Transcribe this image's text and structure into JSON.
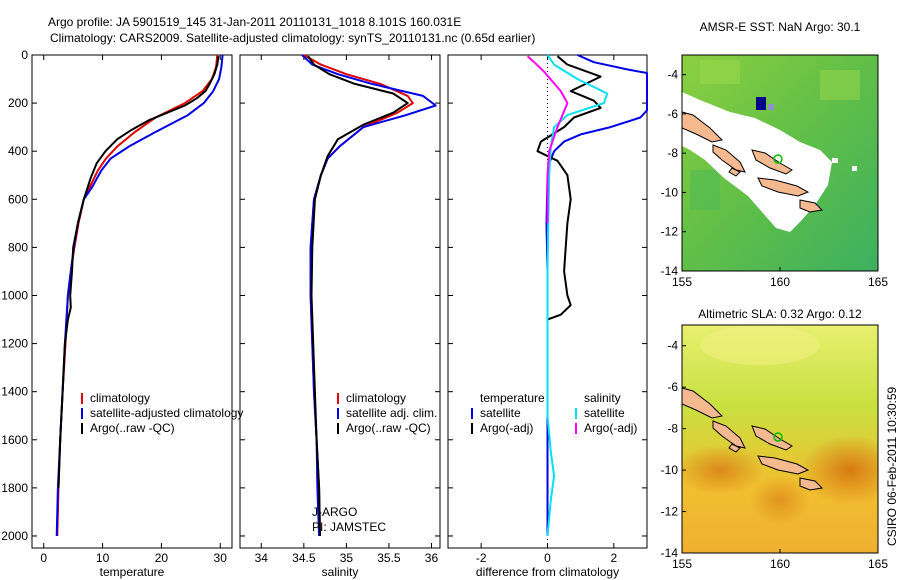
{
  "header": {
    "line1": "Argo profile: JA 5901519_145 31-Jan-2011 20110131_1018 8.101S 160.031E",
    "line2": "Climatology: CARS2009. Satellite-adjusted climatology: synTS_20110131.nc (0.65d earlier)"
  },
  "side_label": "CSIRO 06-Feb-2011 10:30:59",
  "colors": {
    "climatology": "#e00000",
    "satellite": "#0000e6",
    "argo": "#000000",
    "satellite_salinity_diff": "#00e0f0",
    "argo_salinity_diff": "#ff00ff",
    "map_land": "#f4b98f",
    "map_masked": "#ffffff",
    "map_warm": "#f0a020",
    "map_hot": "#d87a12"
  },
  "chart_data": [
    {
      "type": "line",
      "panel": "temperature",
      "xlabel": "temperature",
      "ylabel": "",
      "xlim": [
        -2,
        32
      ],
      "ylim": [
        0,
        2050
      ],
      "y_reversed": true,
      "xticks": [
        0,
        10,
        20,
        30
      ],
      "yticks": [
        0,
        200,
        400,
        600,
        800,
        1000,
        1200,
        1400,
        1600,
        1800,
        2000
      ],
      "legend": [
        "climatology",
        "satellite-adjusted climatology",
        "Argo(..raw -QC)"
      ],
      "series": [
        {
          "name": "climatology",
          "color_key": "climatology",
          "points": [
            [
              29.5,
              0
            ],
            [
              29.3,
              50
            ],
            [
              28.6,
              100
            ],
            [
              27.0,
              150
            ],
            [
              24.0,
              200
            ],
            [
              19.0,
              260
            ],
            [
              15.5,
              320
            ],
            [
              12.5,
              380
            ],
            [
              10.6,
              430
            ],
            [
              9.2,
              480
            ],
            [
              7.8,
              550
            ],
            [
              6.8,
              600
            ],
            [
              5.9,
              700
            ],
            [
              5.2,
              800
            ],
            [
              4.6,
              900
            ],
            [
              4.1,
              1000
            ],
            [
              3.7,
              1200
            ],
            [
              3.2,
              1400
            ],
            [
              2.8,
              1600
            ],
            [
              2.5,
              1800
            ],
            [
              2.3,
              2000
            ]
          ]
        },
        {
          "name": "satellite-adjusted climatology",
          "color_key": "satellite",
          "points": [
            [
              30.4,
              0
            ],
            [
              30.2,
              50
            ],
            [
              29.8,
              100
            ],
            [
              28.8,
              150
            ],
            [
              27.2,
              200
            ],
            [
              24.5,
              250
            ],
            [
              19.0,
              320
            ],
            [
              14.5,
              380
            ],
            [
              11.4,
              430
            ],
            [
              9.8,
              480
            ],
            [
              8.2,
              550
            ],
            [
              6.8,
              600
            ],
            [
              5.8,
              700
            ],
            [
              5.1,
              800
            ],
            [
              4.6,
              900
            ],
            [
              4.1,
              1000
            ],
            [
              3.6,
              1200
            ],
            [
              3.2,
              1400
            ],
            [
              2.8,
              1600
            ],
            [
              2.4,
              1800
            ],
            [
              2.2,
              2000
            ]
          ]
        },
        {
          "name": "Argo(..raw -QC)",
          "color_key": "argo",
          "points": [
            [
              29.7,
              5
            ],
            [
              29.5,
              40
            ],
            [
              29.0,
              80
            ],
            [
              28.2,
              120
            ],
            [
              27.5,
              150
            ],
            [
              26.0,
              180
            ],
            [
              24.0,
              210
            ],
            [
              21.0,
              240
            ],
            [
              18.0,
              270
            ],
            [
              15.0,
              310
            ],
            [
              12.5,
              350
            ],
            [
              10.5,
              400
            ],
            [
              9.0,
              450
            ],
            [
              8.0,
              510
            ],
            [
              6.8,
              600
            ],
            [
              5.8,
              700
            ],
            [
              5.0,
              800
            ],
            [
              4.8,
              900
            ],
            [
              4.5,
              1000
            ],
            [
              4.6,
              1050
            ],
            [
              4.1,
              1100
            ],
            [
              3.6,
              1200
            ],
            [
              3.2,
              1400
            ],
            [
              2.8,
              1600
            ],
            [
              2.5,
              1800
            ]
          ]
        }
      ]
    },
    {
      "type": "line",
      "panel": "salinity",
      "xlabel": "salinity",
      "ylabel": "",
      "xlim": [
        33.75,
        36.1
      ],
      "ylim": [
        0,
        2050
      ],
      "y_reversed": true,
      "xticks": [
        34,
        34.5,
        35,
        35.5,
        36
      ],
      "xtick_labels": [
        "34",
        "34.5",
        "35",
        "35.5",
        "36"
      ],
      "legend": [
        "climatology",
        "satellite adj. clim.",
        "Argo(..raw -QC)"
      ],
      "annotation": [
        "J-ARGO",
        "PI: JAMSTEC"
      ],
      "series": [
        {
          "name": "climatology",
          "color_key": "climatology",
          "points": [
            [
              34.5,
              0
            ],
            [
              34.7,
              40
            ],
            [
              35.0,
              80
            ],
            [
              35.4,
              120
            ],
            [
              35.72,
              170
            ],
            [
              35.78,
              200
            ],
            [
              35.6,
              240
            ],
            [
              35.2,
              300
            ],
            [
              34.92,
              380
            ],
            [
              34.78,
              430
            ],
            [
              34.7,
              500
            ],
            [
              34.62,
              600
            ],
            [
              34.58,
              800
            ],
            [
              34.58,
              1000
            ],
            [
              34.6,
              1200
            ],
            [
              34.62,
              1400
            ],
            [
              34.65,
              1600
            ],
            [
              34.68,
              1800
            ],
            [
              34.69,
              2000
            ]
          ]
        },
        {
          "name": "satellite adj. clim.",
          "color_key": "satellite",
          "points": [
            [
              34.48,
              0
            ],
            [
              34.6,
              40
            ],
            [
              34.9,
              80
            ],
            [
              35.3,
              120
            ],
            [
              35.9,
              170
            ],
            [
              36.05,
              210
            ],
            [
              35.7,
              250
            ],
            [
              35.2,
              300
            ],
            [
              34.92,
              380
            ],
            [
              34.78,
              430
            ],
            [
              34.7,
              500
            ],
            [
              34.62,
              600
            ],
            [
              34.58,
              800
            ],
            [
              34.58,
              1000
            ],
            [
              34.6,
              1200
            ],
            [
              34.62,
              1400
            ],
            [
              34.65,
              1600
            ],
            [
              34.66,
              1800
            ],
            [
              34.68,
              2000
            ]
          ]
        },
        {
          "name": "Argo(..raw -QC)",
          "color_key": "argo",
          "points": [
            [
              34.55,
              5
            ],
            [
              34.62,
              40
            ],
            [
              34.8,
              80
            ],
            [
              35.1,
              120
            ],
            [
              35.55,
              160
            ],
            [
              35.72,
              200
            ],
            [
              35.55,
              240
            ],
            [
              35.2,
              290
            ],
            [
              34.9,
              350
            ],
            [
              34.78,
              420
            ],
            [
              34.7,
              500
            ],
            [
              34.63,
              600
            ],
            [
              34.6,
              800
            ],
            [
              34.59,
              1000
            ],
            [
              34.61,
              1200
            ],
            [
              34.63,
              1400
            ],
            [
              34.65,
              1600
            ],
            [
              34.68,
              1800
            ],
            [
              34.69,
              2000
            ]
          ]
        }
      ]
    },
    {
      "type": "line",
      "panel": "difference",
      "xlabel": "difference from climatology",
      "ylabel": "",
      "xlim": [
        -3,
        3
      ],
      "ylim": [
        0,
        2050
      ],
      "y_reversed": true,
      "xticks": [
        -2,
        0,
        2
      ],
      "legend_headers": [
        "temperature",
        "salinity"
      ],
      "legend": [
        "satellite",
        "Argo(-adj)",
        "satellite",
        "Argo(-adj)"
      ],
      "series": [
        {
          "name": "satellite",
          "variable": "temperature",
          "color_key": "satellite",
          "points": [
            [
              0.9,
              0
            ],
            [
              1.4,
              30
            ],
            [
              2.4,
              60
            ],
            [
              3.0,
              75
            ],
            [
              3.0,
              230
            ],
            [
              2.8,
              260
            ],
            [
              1.9,
              300
            ],
            [
              1.0,
              330
            ],
            [
              0.5,
              360
            ],
            [
              0.2,
              400
            ],
            [
              0.05,
              450
            ],
            [
              0.0,
              500
            ],
            [
              -0.03,
              700
            ],
            [
              0.0,
              900
            ],
            [
              0.0,
              1000
            ],
            [
              0.0,
              1200
            ],
            [
              0.0,
              1400
            ],
            [
              0.0,
              1600
            ],
            [
              0.0,
              1800
            ],
            [
              0.0,
              2000
            ]
          ]
        },
        {
          "name": "Argo(-adj)",
          "variable": "temperature",
          "color_key": "argo",
          "points": [
            [
              0.3,
              5
            ],
            [
              0.6,
              40
            ],
            [
              1.6,
              90
            ],
            [
              0.7,
              150
            ],
            [
              1.4,
              190
            ],
            [
              1.6,
              220
            ],
            [
              0.8,
              260
            ],
            [
              0.5,
              300
            ],
            [
              -0.2,
              360
            ],
            [
              -0.3,
              400
            ],
            [
              0.3,
              440
            ],
            [
              0.6,
              500
            ],
            [
              0.7,
              600
            ],
            [
              0.6,
              700
            ],
            [
              0.55,
              800
            ],
            [
              0.5,
              900
            ],
            [
              0.6,
              1000
            ],
            [
              0.7,
              1040
            ],
            [
              0.4,
              1080
            ],
            [
              0.0,
              1100
            ]
          ]
        },
        {
          "name": "satellite",
          "variable": "salinity",
          "color_key": "satellite_salinity_diff",
          "points": [
            [
              0.0,
              0
            ],
            [
              0.2,
              40
            ],
            [
              0.9,
              100
            ],
            [
              1.8,
              160
            ],
            [
              1.7,
              200
            ],
            [
              0.6,
              250
            ],
            [
              0.2,
              300
            ],
            [
              0.1,
              380
            ],
            [
              0.05,
              500
            ],
            [
              0.02,
              700
            ],
            [
              0.0,
              900
            ],
            [
              0.0,
              1200
            ],
            [
              0.0,
              1500
            ],
            [
              0.1,
              1650
            ],
            [
              0.2,
              1750
            ],
            [
              0.1,
              1850
            ],
            [
              0.0,
              2000
            ]
          ]
        },
        {
          "name": "Argo(-adj)",
          "variable": "salinity",
          "color_key": "argo_salinity_diff",
          "points": [
            [
              -0.6,
              5
            ],
            [
              -0.4,
              30
            ],
            [
              -0.1,
              70
            ],
            [
              0.4,
              150
            ],
            [
              0.6,
              200
            ],
            [
              0.3,
              300
            ],
            [
              0.05,
              400
            ],
            [
              0.0,
              500
            ],
            [
              0.0,
              600
            ],
            [
              0.0,
              700
            ]
          ]
        }
      ]
    },
    {
      "type": "heatmap",
      "panel": "sst_map",
      "title": "AMSR-E SST: NaN Argo: 30.1",
      "xlim": [
        155,
        165
      ],
      "ylim": [
        -14,
        -3
      ],
      "xticks": [
        155,
        160,
        165
      ],
      "yticks": [
        -4,
        -6,
        -8,
        -10,
        -12,
        -14
      ],
      "marker": {
        "lon": 160.031,
        "lat": -8.101
      }
    },
    {
      "type": "heatmap",
      "panel": "sla_map",
      "title": "Altimetric SLA: 0.32 Argo: 0.12",
      "xlim": [
        155,
        165
      ],
      "ylim": [
        -14,
        -3
      ],
      "xticks": [
        155,
        160,
        165
      ],
      "yticks": [
        -4,
        -6,
        -8,
        -10,
        -12,
        -14
      ],
      "marker": {
        "lon": 160.031,
        "lat": -8.101
      }
    }
  ]
}
